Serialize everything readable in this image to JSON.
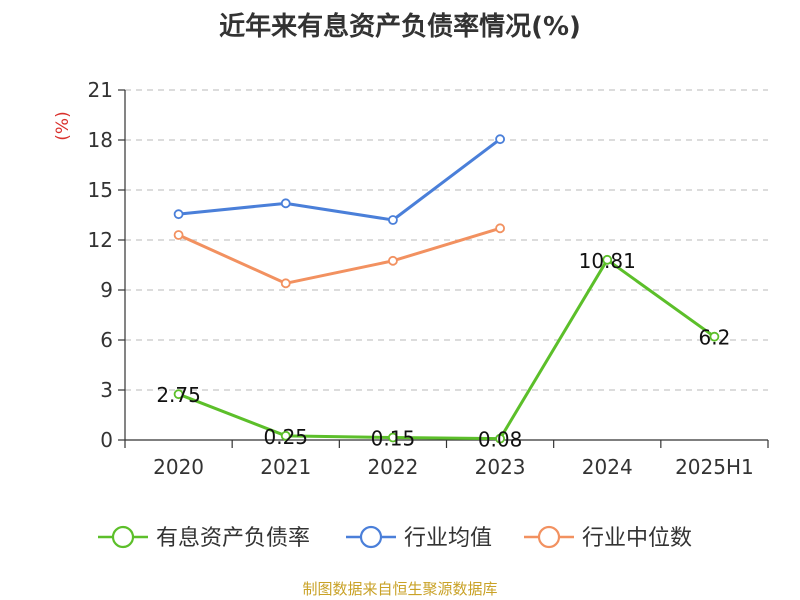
{
  "chart_data": {
    "type": "line",
    "title": "近年来有息资产负债率情况(%)",
    "ylabel": "(%)",
    "categories": [
      "2020",
      "2021",
      "2022",
      "2023",
      "2024",
      "2025H1"
    ],
    "yticks": [
      "0",
      "3",
      "6",
      "9",
      "12",
      "15",
      "18",
      "21"
    ],
    "ylim": [
      0,
      21
    ],
    "grid": true,
    "legend_position": "bottom",
    "series": [
      {
        "name": "有息资产负债率",
        "color": "#5cbf2a",
        "values": [
          2.75,
          0.25,
          0.15,
          0.08,
          10.81,
          6.2
        ],
        "labels": [
          "2.75",
          "0.25",
          "0.15",
          "0.08",
          "10.81",
          "6.2"
        ]
      },
      {
        "name": "行业均值",
        "color": "#4a7fd9",
        "values": [
          13.55,
          14.2,
          13.2,
          18.05,
          null,
          null
        ]
      },
      {
        "name": "行业中位数",
        "color": "#f29160",
        "values": [
          12.3,
          9.4,
          10.75,
          12.7,
          null,
          null
        ]
      }
    ]
  },
  "source": "制图数据来自恒生聚源数据库"
}
